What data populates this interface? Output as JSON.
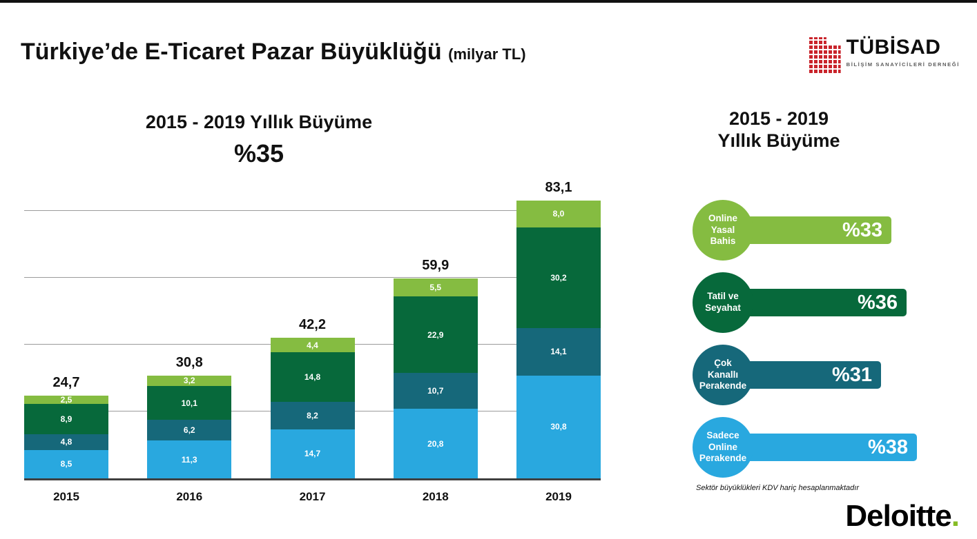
{
  "header": {
    "title": "Türkiye’de E-Ticaret Pazar Büyüklüğü",
    "title_suffix": "(milyar TL)"
  },
  "logo": {
    "name": "TÜBİSAD",
    "subtitle": "BİLİŞİM SANAYİCİLERİ DERNEĞİ",
    "brand_color": "#C9242B"
  },
  "left_panel": {
    "subtitle": "2015 - 2019 Yıllık Büyüme",
    "growth": "%35"
  },
  "chart_data": {
    "type": "bar",
    "stacked": true,
    "title": "Türkiye’de E-Ticaret Pazar Büyüklüğü (milyar TL)",
    "xlabel": "",
    "ylabel": "",
    "ylim": [
      0,
      90
    ],
    "grid": true,
    "gridlines": [
      20,
      40,
      60,
      80
    ],
    "categories": [
      "2015",
      "2016",
      "2017",
      "2018",
      "2019"
    ],
    "totals": [
      "24,7",
      "30,8",
      "42,2",
      "59,9",
      "83,1"
    ],
    "series": [
      {
        "name": "Sadece Online Perakende",
        "color": "#29A8DF",
        "values": [
          8.5,
          11.3,
          14.7,
          20.8,
          30.8
        ],
        "labels": [
          "8,5",
          "11,3",
          "14,7",
          "20,8",
          "30,8"
        ]
      },
      {
        "name": "Çok Kanallı Perakende",
        "color": "#16687A",
        "values": [
          4.8,
          6.2,
          8.2,
          10.7,
          14.1
        ],
        "labels": [
          "4,8",
          "6,2",
          "8,2",
          "10,7",
          "14,1"
        ]
      },
      {
        "name": "Tatil ve Seyahat",
        "color": "#07693B",
        "values": [
          8.9,
          10.1,
          14.8,
          22.9,
          30.2
        ],
        "labels": [
          "8,9",
          "10,1",
          "14,8",
          "22,9",
          "30,2"
        ]
      },
      {
        "name": "Online Yasal Bahis",
        "color": "#85BC41",
        "values": [
          2.5,
          3.2,
          4.4,
          5.5,
          8.0
        ],
        "labels": [
          "2,5",
          "3,2",
          "4,4",
          "5,5",
          "8,0"
        ]
      }
    ]
  },
  "right_panel": {
    "title_line1": "2015 - 2019",
    "title_line2": "Yıllık Büyüme",
    "items": [
      {
        "label": "Online Yasal Bahis",
        "pct": "%33",
        "value": 33,
        "color": "#85BC41"
      },
      {
        "label": "Tatil ve Seyahat",
        "pct": "%36",
        "value": 36,
        "color": "#07693B"
      },
      {
        "label": "Çok Kanallı Perakende",
        "pct": "%31",
        "value": 31,
        "color": "#16687A"
      },
      {
        "label": "Sadece Online Perakende",
        "pct": "%38",
        "value": 38,
        "color": "#29A8DF"
      }
    ]
  },
  "footnote": "Sektör büyüklükleri KDV hariç hesaplanmaktadır",
  "deloitte": {
    "text": "Deloitte",
    "dot_color": "#86BC25"
  }
}
